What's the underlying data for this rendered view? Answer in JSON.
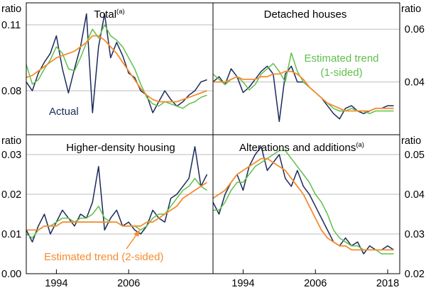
{
  "chart_data": {
    "type": "line",
    "unit_label": "ratio",
    "x_ticks": [
      "1994",
      "2006",
      "1994",
      "2006",
      "2018"
    ],
    "xlim": [
      1989,
      2020
    ],
    "series_styles": [
      {
        "name": "Actual",
        "color": "#1b2a5a"
      },
      {
        "name": "Estimated trend (1-sided)",
        "color": "#5fbf4a"
      },
      {
        "name": "Estimated trend (2-sided)",
        "color": "#f58c2e"
      }
    ],
    "panels": [
      {
        "title": "Total",
        "superscript": "(a)",
        "ylim": [
          0.06,
          0.12
        ],
        "yticks": [
          0.08,
          0.11
        ],
        "ytick_labels": [
          "0.08",
          "0.11"
        ],
        "axis": "left",
        "annotations": [
          {
            "text": "Actual",
            "color": "#1b2a5a"
          }
        ],
        "series": [
          {
            "name": "Actual",
            "color": "#1b2a5a",
            "x": [
              1989,
              1990,
              1991,
              1992,
              1993,
              1994,
              1995,
              1996,
              1997,
              1998,
              1999,
              2000,
              2001,
              2002,
              2003,
              2004,
              2005,
              2006,
              2007,
              2008,
              2009,
              2010,
              2011,
              2012,
              2013,
              2014,
              2015,
              2016,
              2017,
              2018,
              2019
            ],
            "y": [
              0.084,
              0.08,
              0.088,
              0.093,
              0.097,
              0.105,
              0.09,
              0.079,
              0.09,
              0.1,
              0.115,
              0.07,
              0.1,
              0.115,
              0.095,
              0.102,
              0.096,
              0.088,
              0.086,
              0.08,
              0.078,
              0.07,
              0.075,
              0.08,
              0.076,
              0.073,
              0.075,
              0.078,
              0.08,
              0.084,
              0.085
            ]
          },
          {
            "name": "Estimated trend (1-sided)",
            "color": "#5fbf4a",
            "x": [
              1989,
              1990,
              1991,
              1992,
              1993,
              1994,
              1995,
              1996,
              1997,
              1998,
              1999,
              2000,
              2001,
              2002,
              2003,
              2004,
              2005,
              2006,
              2007,
              2008,
              2009,
              2010,
              2011,
              2012,
              2013,
              2014,
              2015,
              2016,
              2017,
              2018,
              2019
            ],
            "y": [
              0.092,
              0.083,
              0.085,
              0.09,
              0.094,
              0.1,
              0.097,
              0.09,
              0.089,
              0.095,
              0.102,
              0.108,
              0.104,
              0.11,
              0.105,
              0.103,
              0.1,
              0.095,
              0.09,
              0.083,
              0.077,
              0.074,
              0.073,
              0.075,
              0.074,
              0.073,
              0.072,
              0.074,
              0.075,
              0.077,
              0.078
            ]
          },
          {
            "name": "Estimated trend (2-sided)",
            "color": "#f58c2e",
            "x": [
              1989,
              1990,
              1991,
              1992,
              1993,
              1994,
              1995,
              1996,
              1997,
              1998,
              1999,
              2000,
              2001,
              2002,
              2003,
              2004,
              2005,
              2006,
              2007,
              2008,
              2009,
              2010,
              2011,
              2012,
              2013,
              2014,
              2015,
              2016,
              2017,
              2018,
              2019
            ],
            "y": [
              0.086,
              0.087,
              0.089,
              0.091,
              0.093,
              0.095,
              0.096,
              0.097,
              0.098,
              0.1,
              0.102,
              0.105,
              0.105,
              0.103,
              0.1,
              0.097,
              0.093,
              0.089,
              0.085,
              0.081,
              0.078,
              0.076,
              0.075,
              0.075,
              0.075,
              0.075,
              0.076,
              0.077,
              0.078,
              0.079,
              0.08
            ]
          }
        ]
      },
      {
        "title": "Detached houses",
        "superscript": "",
        "ylim": [
          0.02,
          0.07
        ],
        "yticks": [
          0.04,
          0.06
        ],
        "ytick_labels": [
          "0.04",
          "0.06"
        ],
        "axis": "right",
        "annotations": [
          {
            "text": "Estimated trend",
            "color": "#5fbf4a"
          },
          {
            "text": "(1-sided)",
            "color": "#5fbf4a"
          }
        ],
        "series": [
          {
            "name": "Actual",
            "color": "#1b2a5a",
            "x": [
              1989,
              1990,
              1991,
              1992,
              1993,
              1994,
              1995,
              1996,
              1997,
              1998,
              1999,
              2000,
              2001,
              2002,
              2003,
              2004,
              2005,
              2006,
              2007,
              2008,
              2009,
              2010,
              2011,
              2012,
              2013,
              2014,
              2015,
              2016,
              2017,
              2018,
              2019
            ],
            "y": [
              0.04,
              0.042,
              0.039,
              0.045,
              0.042,
              0.036,
              0.038,
              0.041,
              0.044,
              0.046,
              0.043,
              0.025,
              0.043,
              0.046,
              0.04,
              0.04,
              0.038,
              0.036,
              0.034,
              0.031,
              0.028,
              0.026,
              0.03,
              0.031,
              0.029,
              0.028,
              0.029,
              0.03,
              0.03,
              0.031,
              0.031
            ]
          },
          {
            "name": "Estimated trend (1-sided)",
            "color": "#5fbf4a",
            "x": [
              1989,
              1990,
              1991,
              1992,
              1993,
              1994,
              1995,
              1996,
              1997,
              1998,
              1999,
              2000,
              2001,
              2002,
              2003,
              2004,
              2005,
              2006,
              2007,
              2008,
              2009,
              2010,
              2011,
              2012,
              2013,
              2014,
              2015,
              2016,
              2017,
              2018,
              2019
            ],
            "y": [
              0.043,
              0.041,
              0.039,
              0.041,
              0.042,
              0.04,
              0.037,
              0.039,
              0.043,
              0.045,
              0.047,
              0.044,
              0.04,
              0.051,
              0.044,
              0.04,
              0.038,
              0.036,
              0.034,
              0.032,
              0.03,
              0.029,
              0.029,
              0.03,
              0.029,
              0.029,
              0.028,
              0.029,
              0.029,
              0.029,
              0.029
            ]
          },
          {
            "name": "Estimated trend (2-sided)",
            "color": "#f58c2e",
            "x": [
              1989,
              1990,
              1991,
              1992,
              1993,
              1994,
              1995,
              1996,
              1997,
              1998,
              1999,
              2000,
              2001,
              2002,
              2003,
              2004,
              2005,
              2006,
              2007,
              2008,
              2009,
              2010,
              2011,
              2012,
              2013,
              2014,
              2015,
              2016,
              2017,
              2018,
              2019
            ],
            "y": [
              0.04,
              0.04,
              0.04,
              0.041,
              0.042,
              0.041,
              0.041,
              0.041,
              0.042,
              0.042,
              0.043,
              0.043,
              0.044,
              0.044,
              0.043,
              0.041,
              0.038,
              0.036,
              0.034,
              0.032,
              0.031,
              0.03,
              0.029,
              0.029,
              0.029,
              0.029,
              0.029,
              0.03,
              0.03,
              0.03,
              0.03
            ]
          }
        ]
      },
      {
        "title": "Higher-density housing",
        "superscript": "",
        "ylim": [
          0.0,
          0.035
        ],
        "yticks": [
          0.0,
          0.01,
          0.02,
          0.03
        ],
        "ytick_labels": [
          "0.00",
          "0.01",
          "0.02",
          "0.03"
        ],
        "axis": "left",
        "annotations": [
          {
            "text": "Estimated trend (2-sided)",
            "color": "#f58c2e"
          }
        ],
        "series": [
          {
            "name": "Actual",
            "color": "#1b2a5a",
            "x": [
              1989,
              1990,
              1991,
              1992,
              1993,
              1994,
              1995,
              1996,
              1997,
              1998,
              1999,
              2000,
              2001,
              2002,
              2003,
              2004,
              2005,
              2006,
              2007,
              2008,
              2009,
              2010,
              2011,
              2012,
              2013,
              2014,
              2015,
              2016,
              2017,
              2018,
              2019
            ],
            "y": [
              0.011,
              0.008,
              0.012,
              0.015,
              0.01,
              0.013,
              0.016,
              0.014,
              0.012,
              0.015,
              0.014,
              0.018,
              0.027,
              0.011,
              0.014,
              0.016,
              0.012,
              0.013,
              0.011,
              0.01,
              0.012,
              0.016,
              0.014,
              0.013,
              0.019,
              0.02,
              0.022,
              0.024,
              0.032,
              0.022,
              0.025
            ]
          },
          {
            "name": "Estimated trend (1-sided)",
            "color": "#5fbf4a",
            "x": [
              1989,
              1990,
              1991,
              1992,
              1993,
              1994,
              1995,
              1996,
              1997,
              1998,
              1999,
              2000,
              2001,
              2002,
              2003,
              2004,
              2005,
              2006,
              2007,
              2008,
              2009,
              2010,
              2011,
              2012,
              2013,
              2014,
              2015,
              2016,
              2017,
              2018,
              2019
            ],
            "y": [
              0.01,
              0.009,
              0.011,
              0.012,
              0.012,
              0.013,
              0.014,
              0.014,
              0.013,
              0.014,
              0.014,
              0.015,
              0.017,
              0.014,
              0.013,
              0.013,
              0.012,
              0.012,
              0.012,
              0.011,
              0.012,
              0.014,
              0.015,
              0.015,
              0.017,
              0.019,
              0.021,
              0.022,
              0.024,
              0.022,
              0.021
            ]
          },
          {
            "name": "Estimated trend (2-sided)",
            "color": "#f58c2e",
            "x": [
              1989,
              1990,
              1991,
              1992,
              1993,
              1994,
              1995,
              1996,
              1997,
              1998,
              1999,
              2000,
              2001,
              2002,
              2003,
              2004,
              2005,
              2006,
              2007,
              2008,
              2009,
              2010,
              2011,
              2012,
              2013,
              2014,
              2015,
              2016,
              2017,
              2018,
              2019
            ],
            "y": [
              0.011,
              0.011,
              0.011,
              0.012,
              0.012,
              0.012,
              0.013,
              0.013,
              0.013,
              0.013,
              0.013,
              0.013,
              0.013,
              0.013,
              0.013,
              0.013,
              0.012,
              0.012,
              0.012,
              0.012,
              0.013,
              0.013,
              0.014,
              0.015,
              0.016,
              0.017,
              0.019,
              0.02,
              0.021,
              0.022,
              0.023
            ]
          }
        ]
      },
      {
        "title": "Alterations and additions",
        "superscript": "(a)",
        "ylim": [
          0.02,
          0.055
        ],
        "yticks": [
          0.02,
          0.03,
          0.04,
          0.05
        ],
        "ytick_labels": [
          "0.02",
          "0.03",
          "0.04",
          "0.05"
        ],
        "axis": "right",
        "annotations": [],
        "series": [
          {
            "name": "Actual",
            "color": "#1b2a5a",
            "x": [
              1989,
              1990,
              1991,
              1992,
              1993,
              1994,
              1995,
              1996,
              1997,
              1998,
              1999,
              2000,
              2001,
              2002,
              2003,
              2004,
              2005,
              2006,
              2007,
              2008,
              2009,
              2010,
              2011,
              2012,
              2013,
              2014,
              2015,
              2016,
              2017,
              2018,
              2019
            ],
            "y": [
              0.038,
              0.035,
              0.04,
              0.043,
              0.045,
              0.041,
              0.047,
              0.05,
              0.052,
              0.046,
              0.048,
              0.05,
              0.044,
              0.042,
              0.046,
              0.042,
              0.04,
              0.037,
              0.034,
              0.031,
              0.028,
              0.027,
              0.029,
              0.027,
              0.028,
              0.025,
              0.027,
              0.026,
              0.026,
              0.027,
              0.026
            ]
          },
          {
            "name": "Estimated trend (1-sided)",
            "color": "#5fbf4a",
            "x": [
              1989,
              1990,
              1991,
              1992,
              1993,
              1994,
              1995,
              1996,
              1997,
              1998,
              1999,
              2000,
              2001,
              2002,
              2003,
              2004,
              2005,
              2006,
              2007,
              2008,
              2009,
              2010,
              2011,
              2012,
              2013,
              2014,
              2015,
              2016,
              2017,
              2018,
              2019
            ],
            "y": [
              0.036,
              0.036,
              0.038,
              0.041,
              0.043,
              0.043,
              0.045,
              0.047,
              0.048,
              0.049,
              0.05,
              0.051,
              0.051,
              0.049,
              0.047,
              0.045,
              0.043,
              0.04,
              0.038,
              0.035,
              0.031,
              0.029,
              0.028,
              0.027,
              0.027,
              0.026,
              0.026,
              0.026,
              0.025,
              0.025,
              0.025
            ]
          },
          {
            "name": "Estimated trend (2-sided)",
            "color": "#f58c2e",
            "x": [
              1989,
              1990,
              1991,
              1992,
              1993,
              1994,
              1995,
              1996,
              1997,
              1998,
              1999,
              2000,
              2001,
              2002,
              2003,
              2004,
              2005,
              2006,
              2007,
              2008,
              2009,
              2010,
              2011,
              2012,
              2013,
              2014,
              2015,
              2016,
              2017,
              2018,
              2019
            ],
            "y": [
              0.039,
              0.04,
              0.041,
              0.043,
              0.045,
              0.046,
              0.047,
              0.048,
              0.049,
              0.049,
              0.048,
              0.047,
              0.046,
              0.044,
              0.042,
              0.04,
              0.037,
              0.034,
              0.031,
              0.029,
              0.028,
              0.027,
              0.027,
              0.026,
              0.026,
              0.026,
              0.026,
              0.026,
              0.026,
              0.026,
              0.026
            ]
          }
        ]
      }
    ]
  }
}
